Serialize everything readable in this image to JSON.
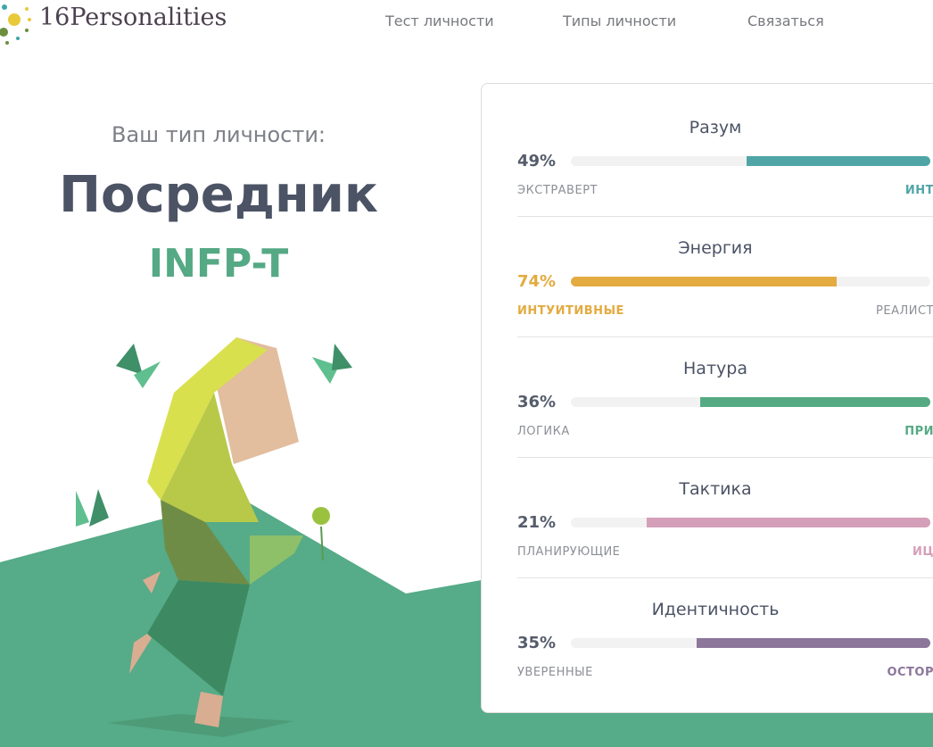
{
  "header": {
    "logo": "16Personalities",
    "nav": [
      "Тест личности",
      "Типы личности",
      "Связаться"
    ]
  },
  "hero": {
    "subtitle": "Ваш тип личности:",
    "name": "Посредник",
    "code": "INFP-T"
  },
  "traits": [
    {
      "title": "Разум",
      "percent": 49,
      "percent_label": "49%",
      "side": "right",
      "color": "#4fa5a6",
      "left_label": "ЭКСТРАВЕРТ",
      "right_label": "ИНТ"
    },
    {
      "title": "Энергия",
      "percent": 74,
      "percent_label": "74%",
      "side": "left",
      "color": "#e3ab40",
      "left_label": "ИНТУИТИВНЫЕ",
      "right_label": "РЕАЛИСТ"
    },
    {
      "title": "Натура",
      "percent": 36,
      "percent_label": "36%",
      "side": "right",
      "color": "#55aa84",
      "left_label": "ЛОГИКА",
      "right_label": "ПРИ"
    },
    {
      "title": "Тактика",
      "percent": 21,
      "percent_label": "21%",
      "side": "right",
      "color": "#d49fb8",
      "left_label": "ПЛАНИРУЮЩИЕ",
      "right_label": "ИЦ"
    },
    {
      "title": "Идентичность",
      "percent": 35,
      "percent_label": "35%",
      "side": "right",
      "color": "#8c779b",
      "left_label": "УВЕРЕННЫЕ",
      "right_label": "ОСТОР"
    }
  ]
}
